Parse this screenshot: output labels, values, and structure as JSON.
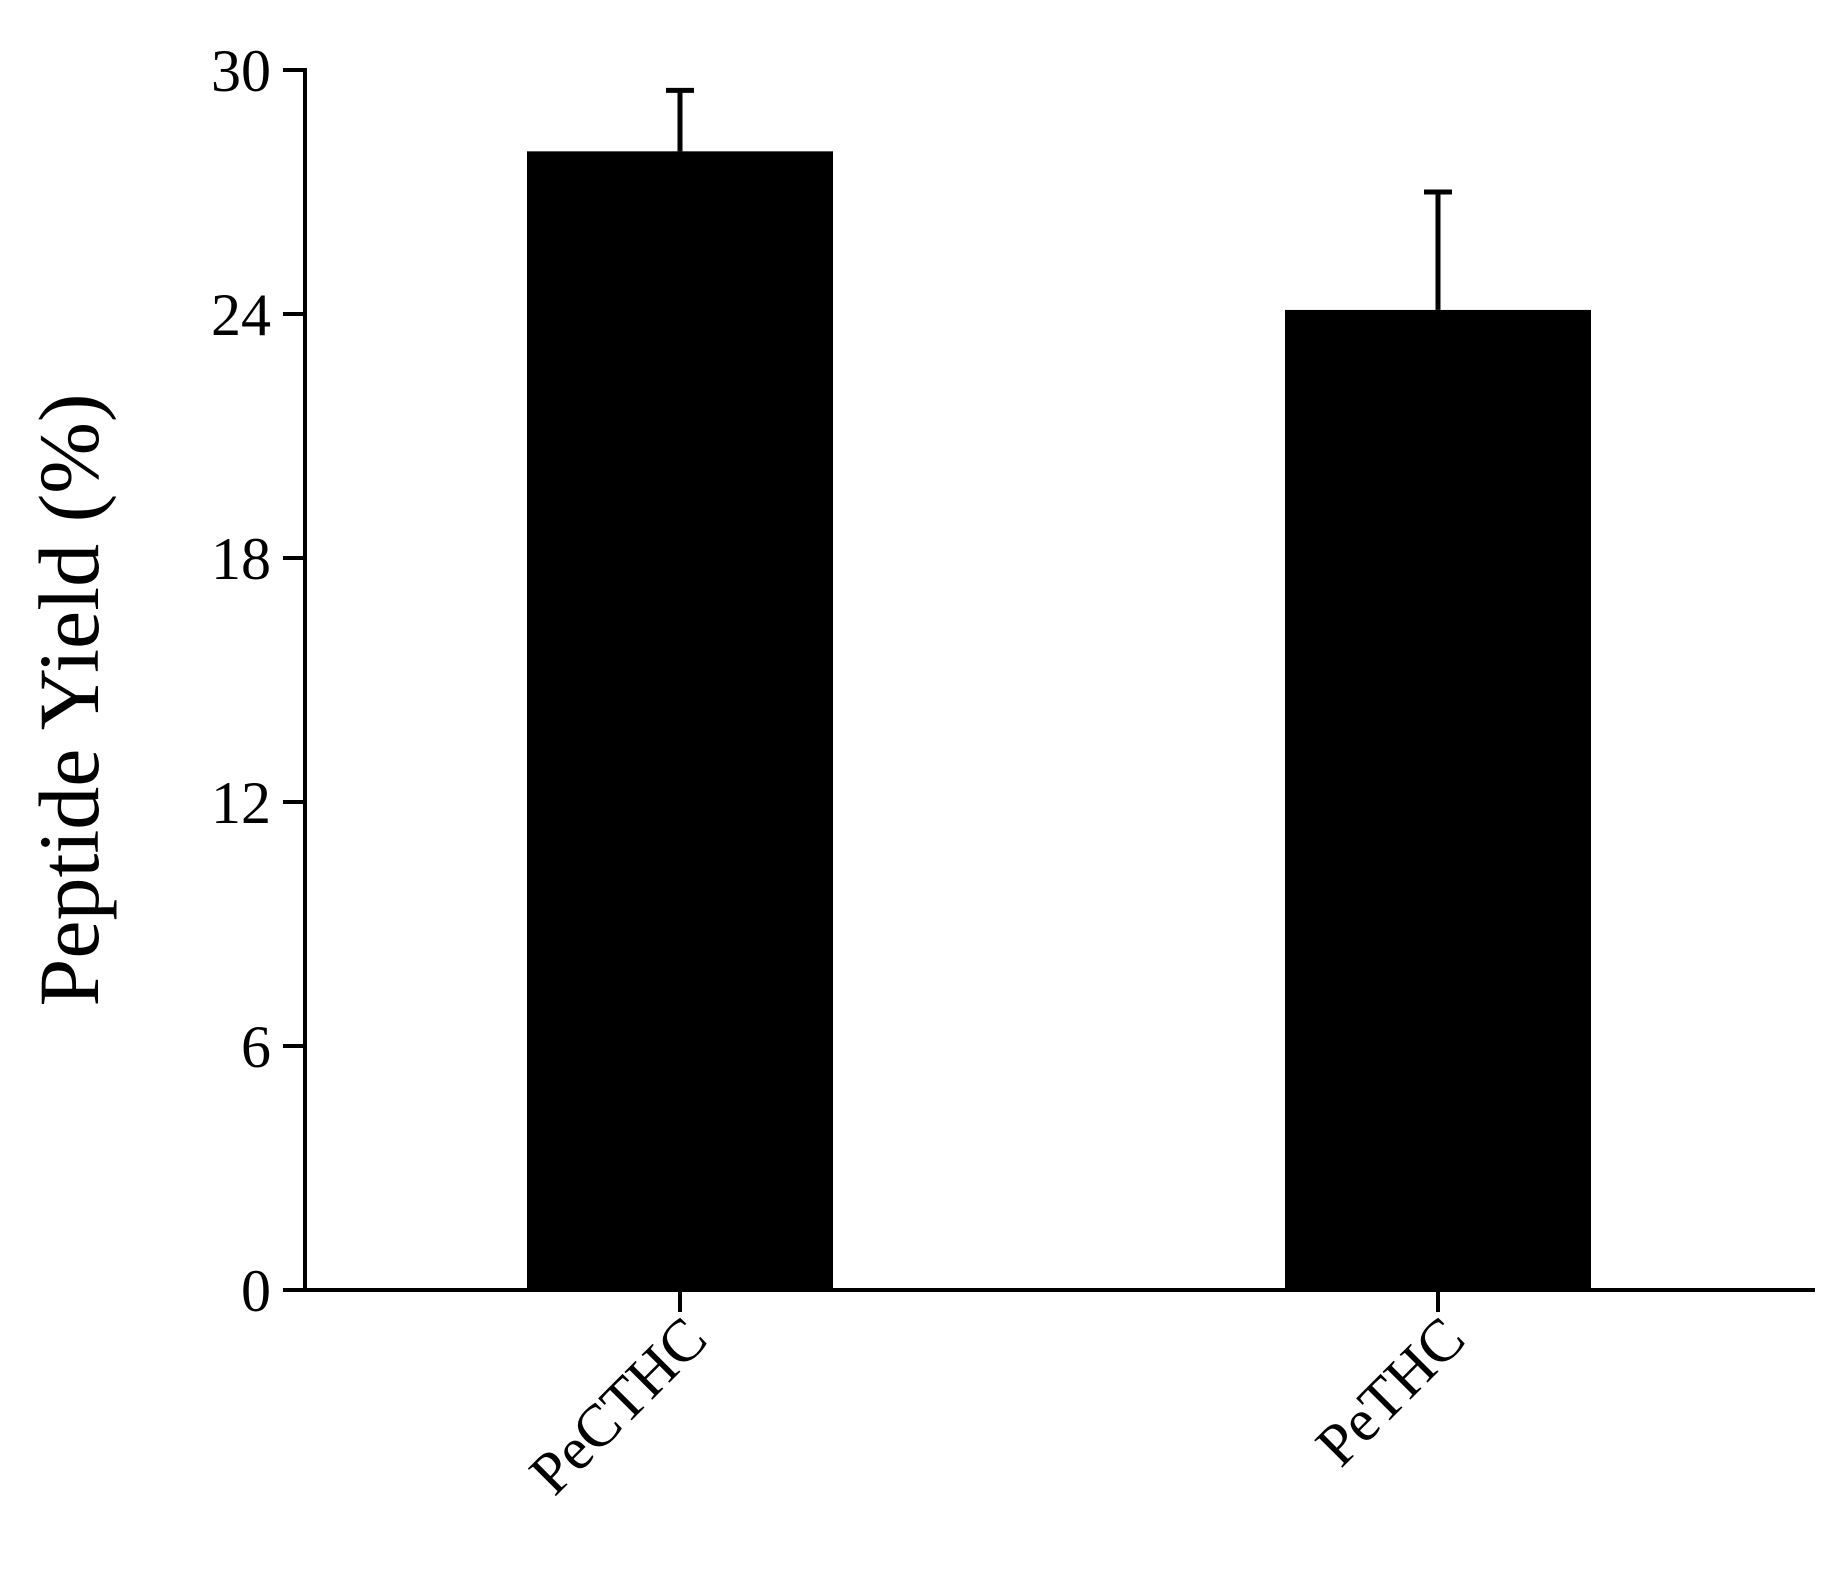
{
  "chart_data": {
    "type": "bar",
    "title": "",
    "xlabel": "",
    "ylabel": "Peptide Yield (%)",
    "categories": [
      "PeCTHC",
      "PeTHC"
    ],
    "values": [
      28.0,
      24.1
    ],
    "errors": [
      1.5,
      2.9
    ],
    "ylim": [
      0,
      30
    ],
    "yticks": [
      0,
      6,
      12,
      18,
      24,
      30
    ],
    "ytick_labels": [
      "0",
      "6",
      "12",
      "18",
      "24",
      "30"
    ],
    "bar_color": "#000000",
    "grid": false,
    "legend": "none"
  }
}
